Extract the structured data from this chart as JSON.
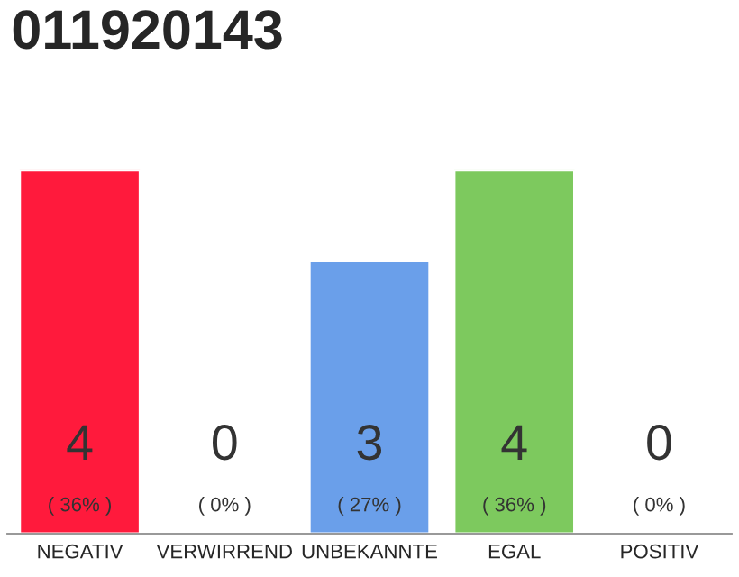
{
  "chart_data": {
    "type": "bar",
    "title": "011920143",
    "categories": [
      "NEGATIV",
      "VERWIRREND",
      "UNBEKANNTE",
      "EGAL",
      "POSITIV"
    ],
    "values": [
      4,
      0,
      3,
      4,
      0
    ],
    "colors": [
      "#ff1a3c",
      null,
      "#6a9fea",
      "#7dc95e",
      null
    ],
    "value_labels": [
      "4\n( 36% )",
      "0\n( 0% )",
      "3\n( 27% )",
      "4\n( 36% )",
      "0\n( 0% )"
    ],
    "tick_labels": "x",
    "grid": false,
    "legend": false
  }
}
